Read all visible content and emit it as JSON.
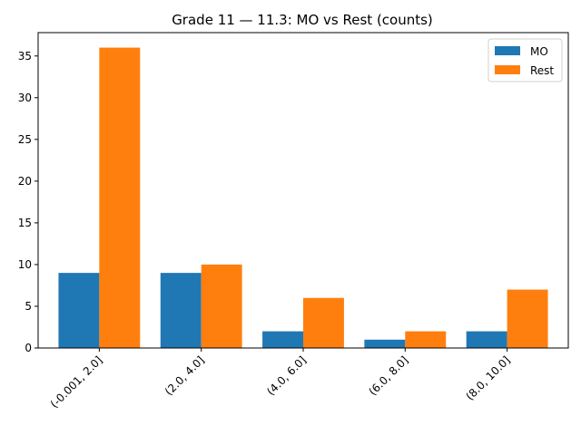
{
  "chart_data": {
    "type": "bar",
    "title": "Grade 11 — 11.3: MO vs Rest (counts)",
    "xlabel": "",
    "ylabel": "",
    "categories": [
      "(-0.001, 2.0]",
      "(2.0, 4.0]",
      "(4.0, 6.0]",
      "(6.0, 8.0]",
      "(8.0, 10.0]"
    ],
    "series": [
      {
        "name": "MO",
        "values": [
          9,
          9,
          2,
          1,
          2
        ],
        "color": "#1f77b4"
      },
      {
        "name": "Rest",
        "values": [
          36,
          10,
          6,
          2,
          7
        ],
        "color": "#ff7f0e"
      }
    ],
    "ylim": [
      0,
      37.8
    ],
    "yticks": [
      0,
      5,
      10,
      15,
      20,
      25,
      30,
      35
    ],
    "grid": false,
    "legend_position": "top-right"
  }
}
